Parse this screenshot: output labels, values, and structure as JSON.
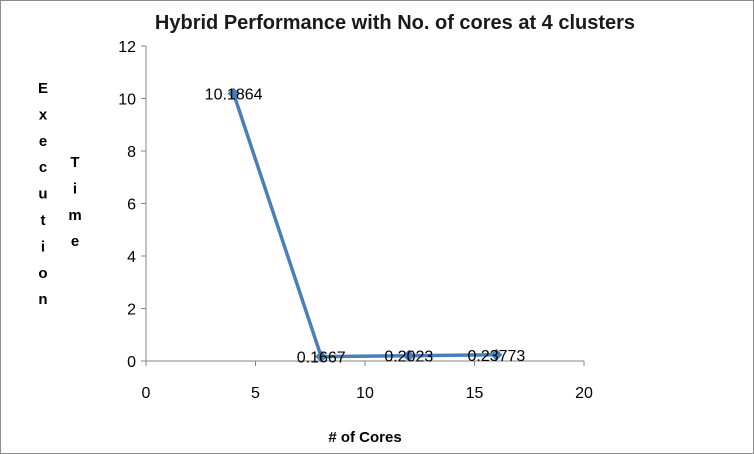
{
  "chart_data": {
    "type": "line",
    "title": "Hybrid Performance with No. of cores at 4 clusters",
    "xlabel": "# of Cores",
    "ylabel_parts": [
      "Execution",
      "Time"
    ],
    "xlim": [
      0,
      20
    ],
    "ylim": [
      0,
      12
    ],
    "x_ticks": [
      "0",
      "5",
      "10",
      "15",
      "20"
    ],
    "y_ticks": [
      "0",
      "2",
      "4",
      "6",
      "8",
      "10",
      "12"
    ],
    "grid": false,
    "legend": "none",
    "series": [
      {
        "x": [
          4,
          8,
          12,
          16
        ],
        "y": [
          10.1864,
          0.1667,
          0.2023,
          0.23773
        ],
        "labels": [
          "10.1864",
          "0.1667",
          "0.2023",
          "0.23773"
        ],
        "color": "#4a7ebb"
      }
    ]
  }
}
